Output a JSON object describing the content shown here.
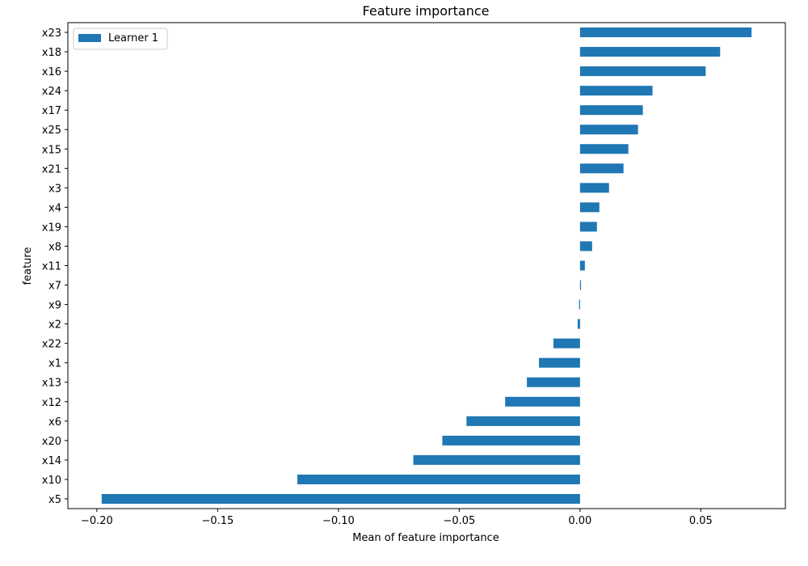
{
  "chart_data": {
    "type": "bar",
    "orientation": "horizontal",
    "title": "Feature importance",
    "xlabel": "Mean of feature importance",
    "ylabel": "feature",
    "xlim": [
      -0.212,
      0.085
    ],
    "x_ticks": [
      -0.2,
      -0.15,
      -0.1,
      -0.05,
      0.0,
      0.05
    ],
    "x_tick_labels": [
      "−0.20",
      "−0.15",
      "−0.10",
      "−0.05",
      "0.00",
      "0.05"
    ],
    "grid": false,
    "legend_position": "top-left",
    "colors": {
      "bar": "#1f77b4"
    },
    "categories": [
      "x23",
      "x18",
      "x16",
      "x24",
      "x17",
      "x25",
      "x15",
      "x21",
      "x3",
      "x4",
      "x19",
      "x8",
      "x11",
      "x7",
      "x9",
      "x2",
      "x22",
      "x1",
      "x13",
      "x12",
      "x6",
      "x20",
      "x14",
      "x10",
      "x5"
    ],
    "series": [
      {
        "name": "Learner 1",
        "values": [
          0.071,
          0.058,
          0.052,
          0.03,
          0.026,
          0.024,
          0.02,
          0.018,
          0.012,
          0.008,
          0.007,
          0.005,
          0.002,
          0.0004,
          -0.0004,
          -0.001,
          -0.011,
          -0.017,
          -0.022,
          -0.031,
          -0.047,
          -0.057,
          -0.069,
          -0.117,
          -0.198
        ]
      }
    ]
  }
}
